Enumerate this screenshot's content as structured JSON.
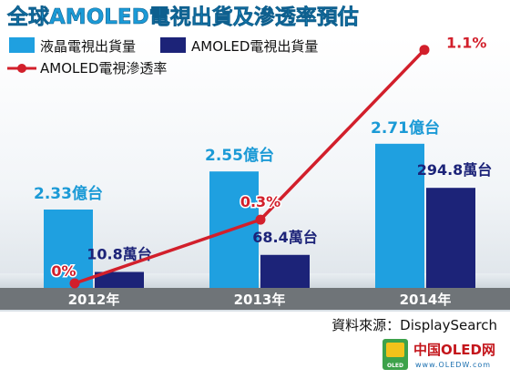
{
  "chart_data": {
    "type": "bar",
    "title": "全球AMOLED電視出貨及滲透率預估",
    "categories": [
      "2012年",
      "2013年",
      "2014年"
    ],
    "series": [
      {
        "name": "液晶電視出貨量",
        "values": [
          2.33,
          2.55,
          2.71
        ],
        "unit": "億台",
        "labels": [
          "2.33億台",
          "2.55億台",
          "2.71億台"
        ],
        "color": "#1fa0e0"
      },
      {
        "name": "AMOLED電視出貨量",
        "values": [
          10.8,
          68.4,
          294.8
        ],
        "unit": "萬台",
        "labels": [
          "10.8萬台",
          "68.4萬台",
          "294.8萬台"
        ],
        "color": "#1c2378"
      },
      {
        "name": "AMOLED電視滲透率",
        "type": "line",
        "values": [
          0,
          0.3,
          1.1
        ],
        "unit": "%",
        "labels": [
          "0%",
          "0.3%",
          "1.1%"
        ],
        "color": "#d21f2b"
      }
    ],
    "legend": "top-left",
    "grid": false
  },
  "source": "資料來源：DisplaySearch",
  "watermark": {
    "text": "中国OLED网",
    "url": "www.OLEDW.com",
    "badge": "OLED"
  }
}
